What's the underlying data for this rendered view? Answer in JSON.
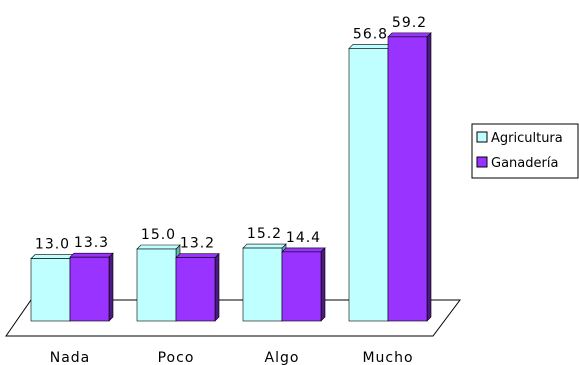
{
  "chart_data": {
    "type": "bar",
    "categories": [
      "Nada",
      "Poco",
      "Algo",
      "Mucho"
    ],
    "series": [
      {
        "name": "Agricultura",
        "values": [
          13.0,
          15.0,
          15.2,
          56.8
        ],
        "color": "#bfffff",
        "side_color": "#66b3b3"
      },
      {
        "name": "Ganadería",
        "values": [
          13.3,
          13.2,
          14.4,
          59.2
        ],
        "color": "#9933ff",
        "side_color": "#4d1a80"
      }
    ],
    "ylim": [
      0,
      60
    ],
    "grid": false,
    "legend_position": "right",
    "title": "",
    "xlabel": "",
    "ylabel": ""
  }
}
